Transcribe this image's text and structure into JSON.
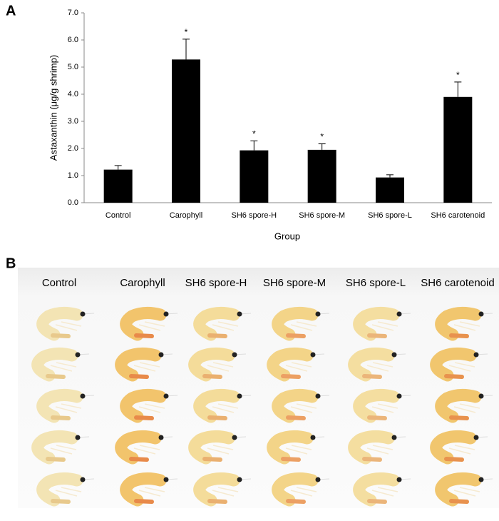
{
  "panel_a_label": "A",
  "chart_data": {
    "type": "bar",
    "y_label": "Astaxanthin (μg/g shrimp)",
    "x_label": "Group",
    "categories": [
      "Control",
      "Carophyll",
      "SH6 spore-H",
      "SH6 spore-M",
      "SH6 spore-L",
      "SH6 carotenoid"
    ],
    "values": [
      1.22,
      5.28,
      1.93,
      1.95,
      0.93,
      3.9
    ],
    "errors": [
      0.15,
      0.75,
      0.35,
      0.22,
      0.1,
      0.55
    ],
    "markers": [
      null,
      "*",
      "*",
      "*",
      null,
      "*"
    ],
    "color": "#000000",
    "ylim": [
      0,
      7
    ],
    "yticks": [
      {
        "value": 0,
        "label": "0.0"
      },
      {
        "value": 1,
        "label": "1.0"
      },
      {
        "value": 2,
        "label": "2.0"
      },
      {
        "value": 3,
        "label": "3.0"
      },
      {
        "value": 4,
        "label": "4.0"
      },
      {
        "value": 5,
        "label": "5.0"
      },
      {
        "value": 6,
        "label": "6.0"
      },
      {
        "value": 7,
        "label": "7.0"
      }
    ],
    "grid": false
  },
  "photo": {
    "label": "B",
    "columns": [
      "Control",
      "Carophyll",
      "SH6 spore-H",
      "SH6 spore-M",
      "SH6 spore-L",
      "SH6 carotenoid"
    ]
  }
}
